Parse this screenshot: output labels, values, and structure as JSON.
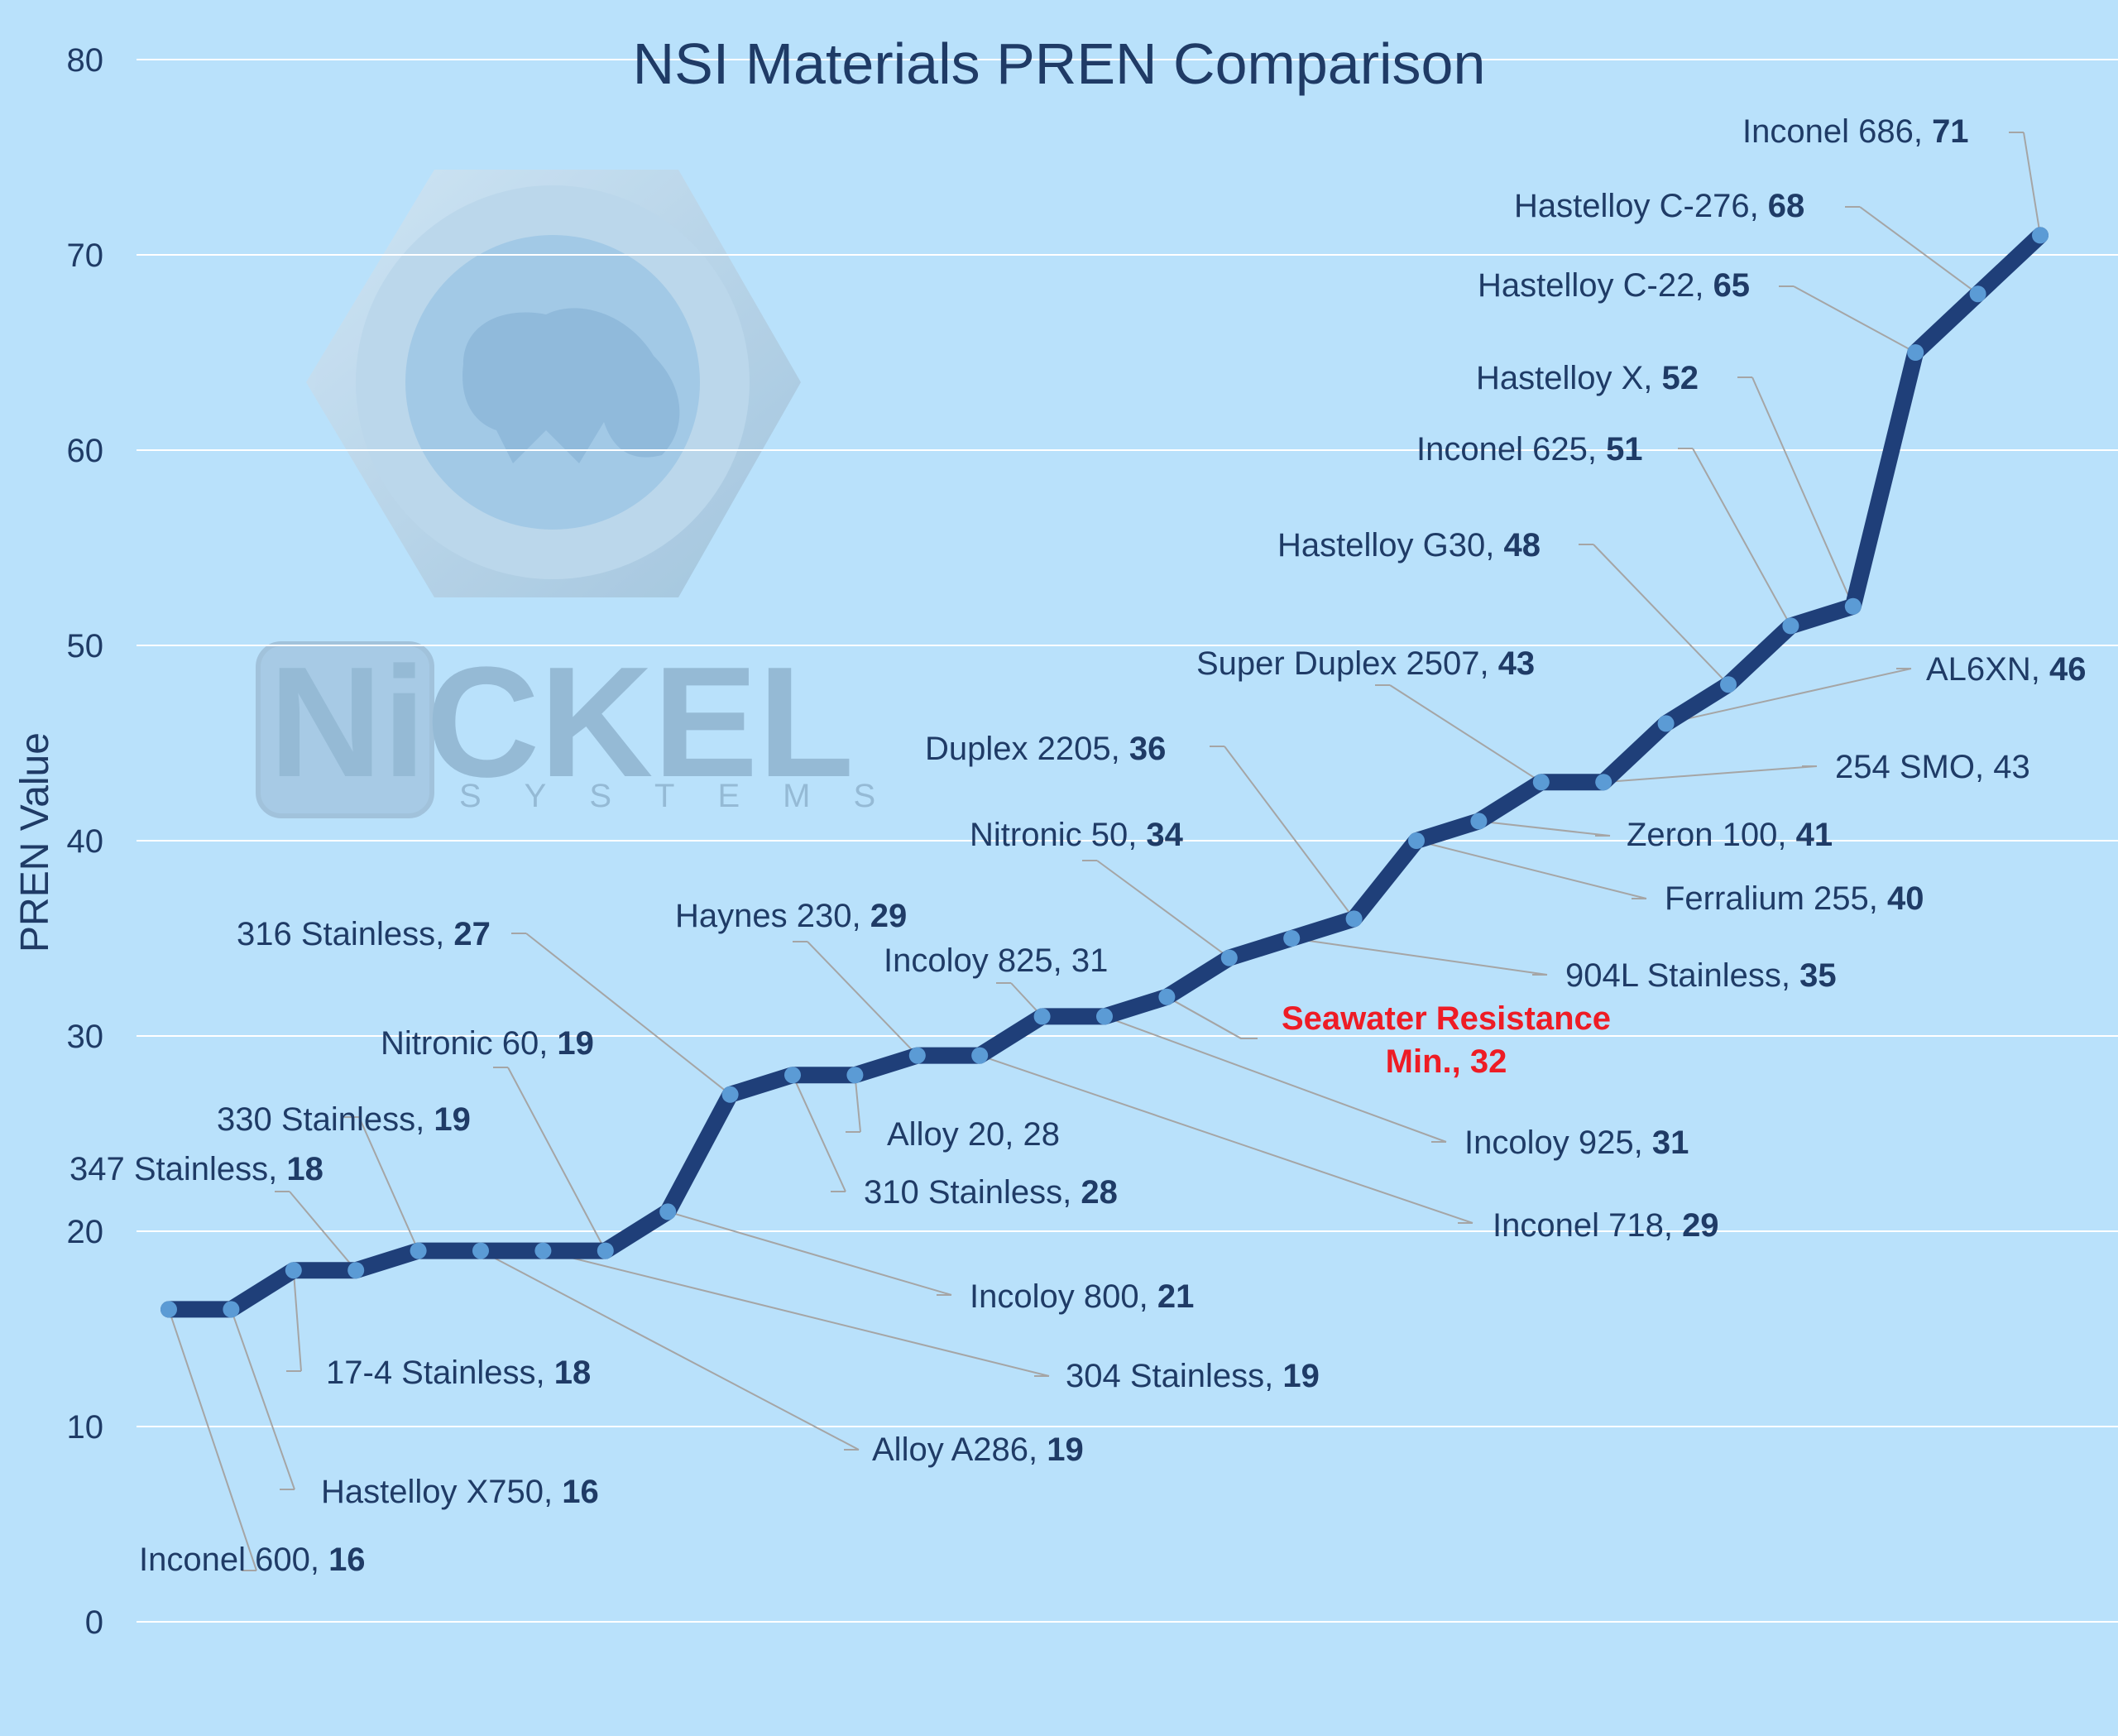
{
  "chart_data": {
    "type": "line",
    "title": "NSI Materials PREN Comparison",
    "ylabel": "PREN Value",
    "xlabel": "",
    "ylim": [
      0,
      80
    ],
    "yticks": [
      "0",
      "10",
      "20",
      "30",
      "40",
      "50",
      "60",
      "70",
      "80"
    ],
    "grid": true,
    "line_color": "#1f3f79",
    "marker_color": "#5b9bd5",
    "series": [
      {
        "values": [
          16,
          16,
          18,
          18,
          19,
          19,
          19,
          19,
          21,
          27,
          28,
          28,
          29,
          29,
          31,
          31,
          32,
          34,
          35,
          36,
          40,
          41,
          43,
          43,
          46,
          48,
          51,
          52,
          65,
          68,
          71
        ]
      }
    ],
    "labels": [
      {
        "name": "Inconel 600",
        "value": "16",
        "bold": true
      },
      {
        "name": "Hastelloy X750",
        "value": "16",
        "bold": true
      },
      {
        "name": "17-4 Stainless",
        "value": "18",
        "bold": true
      },
      {
        "name": "347 Stainless",
        "value": "18",
        "bold": true
      },
      {
        "name": "330 Stainless",
        "value": "19",
        "bold": true
      },
      {
        "name": "Alloy A286",
        "value": "19",
        "bold": true
      },
      {
        "name": "304 Stainless",
        "value": "19",
        "bold": true
      },
      {
        "name": "Nitronic 60",
        "value": "19",
        "bold": true
      },
      {
        "name": "Incoloy 800",
        "value": "21",
        "bold": true
      },
      {
        "name": "316 Stainless",
        "value": "27",
        "bold": true
      },
      {
        "name": "310 Stainless",
        "value": "28",
        "bold": true
      },
      {
        "name": "Alloy 20",
        "value": "28",
        "bold": false
      },
      {
        "name": "Haynes 230",
        "value": "29",
        "bold": true
      },
      {
        "name": "Inconel 718",
        "value": "29",
        "bold": true
      },
      {
        "name": "Incoloy 825",
        "value": "31",
        "bold": false
      },
      {
        "name": "Incoloy 925",
        "value": "31",
        "bold": true
      },
      {
        "name": "",
        "value": "",
        "bold": false
      },
      {
        "name": "Nitronic 50",
        "value": "34",
        "bold": true
      },
      {
        "name": "904L Stainless",
        "value": "35",
        "bold": true
      },
      {
        "name": "Duplex 2205",
        "value": "36",
        "bold": true
      },
      {
        "name": "Ferralium 255",
        "value": "40",
        "bold": true
      },
      {
        "name": "Zeron 100",
        "value": "41",
        "bold": true
      },
      {
        "name": "Super Duplex 2507",
        "value": "43",
        "bold": true
      },
      {
        "name": "254 SMO",
        "value": "43",
        "bold": false
      },
      {
        "name": "AL6XN",
        "value": "46",
        "bold": true
      },
      {
        "name": "Hastelloy G30",
        "value": "48",
        "bold": true
      },
      {
        "name": "Inconel 625",
        "value": "51",
        "bold": true
      },
      {
        "name": "Hastelloy X",
        "value": "52",
        "bold": true
      },
      {
        "name": "Hastelloy C-22",
        "value": "65",
        "bold": true
      },
      {
        "name": "Hastelloy C-276",
        "value": "68",
        "bold": true
      },
      {
        "name": "Inconel 686",
        "value": "71",
        "bold": true
      }
    ],
    "annotation": {
      "line1": "Seawater Resistance",
      "line2": "Min., 32",
      "color": "#ee1c25"
    }
  },
  "logo": {
    "word": "NiCKEL",
    "sub": "SYSTEMS"
  }
}
